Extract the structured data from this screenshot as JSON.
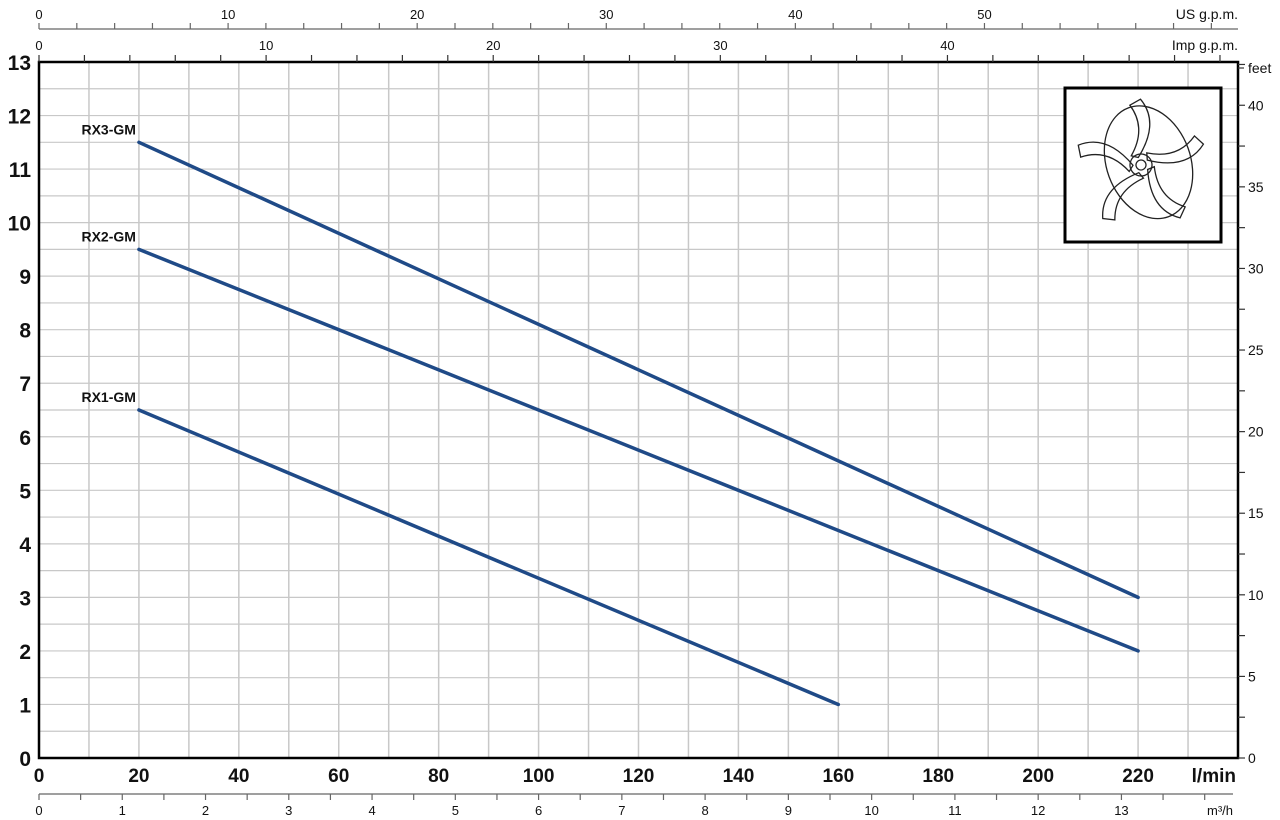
{
  "chart_data": {
    "type": "line",
    "title": "",
    "xlabel": "l/min",
    "ylabel": "",
    "xlim": [
      0,
      240
    ],
    "ylim": [
      0,
      13
    ],
    "grid": true,
    "x_ticks": [
      0,
      20,
      40,
      60,
      80,
      100,
      120,
      140,
      160,
      180,
      200,
      220
    ],
    "y_ticks": [
      0,
      1,
      2,
      3,
      4,
      5,
      6,
      7,
      8,
      9,
      10,
      11,
      12,
      13
    ],
    "secondary_axes": {
      "top_us": {
        "label": "US g.p.m.",
        "ticks": [
          0,
          10,
          20,
          30,
          40,
          50
        ]
      },
      "top_imp": {
        "label": "Imp g.p.m.",
        "ticks": [
          0,
          10,
          20,
          30,
          40
        ]
      },
      "bottom_m3h": {
        "label": "m³/h",
        "ticks": [
          0,
          1,
          2,
          3,
          4,
          5,
          6,
          7,
          8,
          9,
          10,
          11,
          12,
          13
        ]
      },
      "right_feet": {
        "label": "feet",
        "ticks": [
          0,
          5,
          10,
          15,
          20,
          25,
          30,
          35,
          40
        ]
      }
    },
    "series": [
      {
        "name": "RX3-GM",
        "x": [
          20,
          220
        ],
        "y": [
          11.5,
          3.0
        ]
      },
      {
        "name": "RX2-GM",
        "x": [
          20,
          220
        ],
        "y": [
          9.5,
          2.0
        ]
      },
      {
        "name": "RX1-GM",
        "x": [
          20,
          160
        ],
        "y": [
          6.5,
          1.0
        ]
      }
    ],
    "line_color": "#1f4a87",
    "grid_color": "#c8c8c8",
    "inset_icon": "impeller-icon"
  }
}
